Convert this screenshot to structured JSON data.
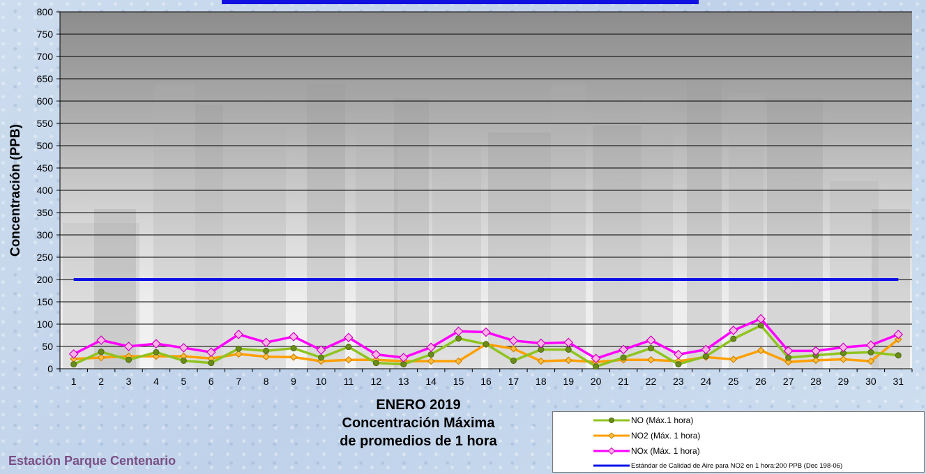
{
  "chart_data": {
    "type": "line",
    "title": "ENERO 2019",
    "subtitle_lines": [
      "Concentración Máxima",
      "de promedios de 1 hora"
    ],
    "ylabel": "Concentración  (PPB)",
    "xlabel": "",
    "ylim": [
      0,
      800
    ],
    "ystep": 50,
    "grid": true,
    "legend_position": "bottom-right",
    "categories": [
      "1",
      "2",
      "3",
      "4",
      "5",
      "6",
      "7",
      "8",
      "9",
      "10",
      "11",
      "12",
      "13",
      "14",
      "15",
      "16",
      "17",
      "18",
      "19",
      "20",
      "21",
      "22",
      "23",
      "24",
      "25",
      "26",
      "27",
      "28",
      "29",
      "30",
      "31"
    ],
    "series": [
      {
        "name": "NO (Máx.1 hora)",
        "color": "#8fc31f",
        "marker": "circle",
        "values": [
          10,
          38,
          20,
          37,
          18,
          13,
          45,
          40,
          46,
          25,
          49,
          13,
          10,
          32,
          68,
          55,
          18,
          43,
          43,
          5,
          25,
          46,
          10,
          28,
          67,
          97,
          25,
          30,
          35,
          37,
          30
        ]
      },
      {
        "name": "NO2 (Máx. 1 hora)",
        "color": "#ffa000",
        "marker": "diamond",
        "values": [
          22,
          25,
          28,
          28,
          28,
          23,
          33,
          27,
          26,
          17,
          20,
          20,
          17,
          17,
          17,
          55,
          45,
          17,
          19,
          15,
          20,
          20,
          17,
          26,
          21,
          41,
          15,
          19,
          21,
          17,
          66
        ]
      },
      {
        "name": "NOx (Máx. 1 hora)",
        "color": "#ff00ff",
        "marker": "diamond",
        "values": [
          33,
          64,
          50,
          56,
          47,
          37,
          77,
          59,
          72,
          42,
          70,
          32,
          25,
          48,
          84,
          82,
          63,
          57,
          59,
          23,
          43,
          64,
          32,
          43,
          86,
          112,
          40,
          40,
          48,
          53,
          77
        ]
      },
      {
        "name": "Estándar de Calidad de Aire para NO2 en 1 hora:200 PPB (Dec 198-06)",
        "color": "#0a10e6",
        "marker": "none",
        "values": [
          200,
          200,
          200,
          200,
          200,
          200,
          200,
          200,
          200,
          200,
          200,
          200,
          200,
          200,
          200,
          200,
          200,
          200,
          200,
          200,
          200,
          200,
          200,
          200,
          200,
          200,
          200,
          200,
          200,
          200,
          200
        ]
      }
    ]
  },
  "station": "Estación Parque Centenario",
  "icons": {
    "background": "city-skyline-watermark"
  }
}
